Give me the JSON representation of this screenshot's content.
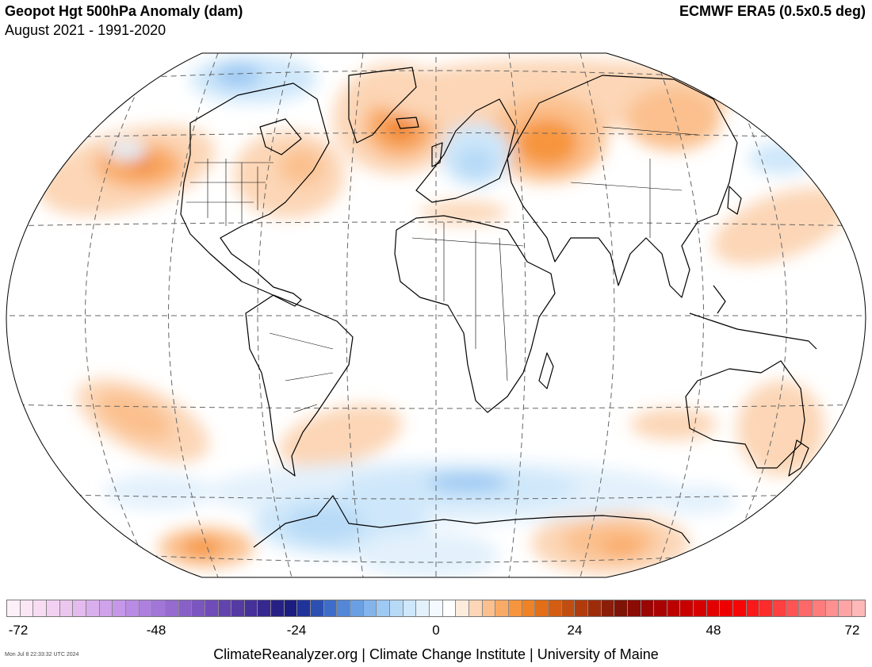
{
  "header": {
    "title": "Geopot Hgt 500hPa Anomaly (dam)",
    "subtitle": "August 2021 - 1991-2020",
    "source": "ECMWF ERA5 (0.5x0.5 deg)"
  },
  "colorbar": {
    "ticks": [
      "-72",
      "-48",
      "-24",
      "0",
      "24",
      "48",
      "72"
    ],
    "colors": [
      "#fdf0f8",
      "#fbe6f6",
      "#f7dcf3",
      "#f1d0f1",
      "#ebc6ee",
      "#e3bbee",
      "#d9aeec",
      "#cfa3ea",
      "#c497e8",
      "#b98be4",
      "#ad80de",
      "#a176d8",
      "#956bd0",
      "#8960c8",
      "#7c56c0",
      "#6f4cb7",
      "#6343ae",
      "#553aa4",
      "#46309a",
      "#37288f",
      "#272084",
      "#1b1d80",
      "#1f3399",
      "#2c4fb2",
      "#3d6dc8",
      "#5488d7",
      "#6aa0e3",
      "#83b5ec",
      "#9dc9f3",
      "#b7daf7",
      "#cee7fa",
      "#e3f1fc",
      "#f3f9fe",
      "#ffffff",
      "#fdebdc",
      "#fcd6b6",
      "#fbc08d",
      "#f9aa66",
      "#f6953e",
      "#ef8225",
      "#e26f18",
      "#d35e13",
      "#c24d10",
      "#b03c0d",
      "#9d2c0a",
      "#8a1e08",
      "#7d1406",
      "#8a0c04",
      "#9a0603",
      "#aa0202",
      "#ba0000",
      "#c90000",
      "#d60000",
      "#e30000",
      "#ee0000",
      "#f60606",
      "#fb1818",
      "#fd2c2c",
      "#fe4040",
      "#ff5454",
      "#ff6868",
      "#ff7c7c",
      "#ff9090",
      "#ffa4a4",
      "#ffb8b8"
    ]
  },
  "footer": {
    "timestamp": "Mon Jul  8 22:33:32 UTC 2024",
    "credit": "ClimateReanalyzer.org | Climate Change Institute | University of Maine"
  }
}
